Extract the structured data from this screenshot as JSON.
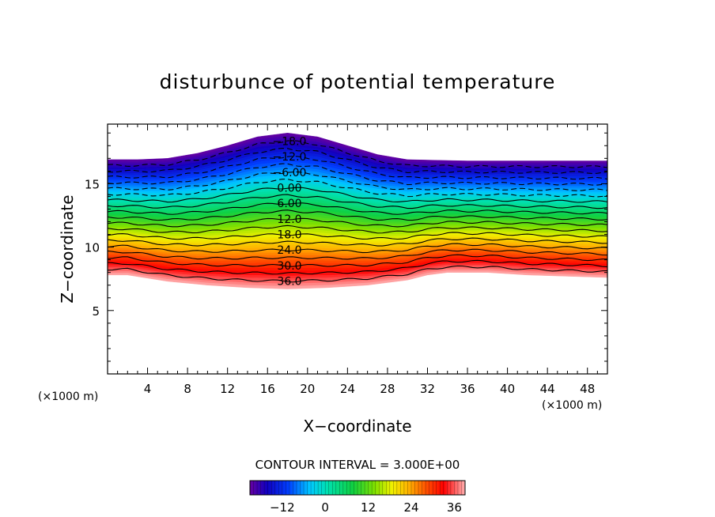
{
  "chart_data": {
    "type": "contour",
    "title": "disturbunce of potential temperature",
    "xlabel": "X−coordinate",
    "ylabel": "Z−coordinate",
    "x_unit_label": "(×1000 m)",
    "x_unit_label_right": "(×1000 m)",
    "xlim": [
      0,
      50
    ],
    "ylim": [
      0,
      19.7
    ],
    "x_ticks": [
      4,
      8,
      12,
      16,
      20,
      24,
      28,
      32,
      36,
      40,
      44,
      48
    ],
    "y_ticks": [
      5,
      10,
      15
    ],
    "contour_interval_text": "CONTOUR INTERVAL = 3.000E+00",
    "contour_interval": 3,
    "value_range": [
      -21,
      39
    ],
    "negative_contours_dashed": true,
    "colorbar": {
      "ticks": [
        -12,
        0,
        12,
        24,
        36
      ],
      "tick_labels": [
        "−12",
        "0",
        "12",
        "24",
        "36"
      ],
      "min": -21,
      "max": 39
    },
    "field_top": {
      "x": [
        0,
        3,
        6,
        9,
        12,
        15,
        18,
        21,
        24,
        27,
        30,
        33,
        36,
        40,
        44,
        50
      ],
      "z": [
        16.9,
        16.9,
        17.0,
        17.4,
        18.0,
        18.7,
        19.0,
        18.7,
        18.0,
        17.3,
        16.9,
        16.85,
        16.8,
        16.8,
        16.8,
        16.8
      ]
    },
    "field_bottom": {
      "x": [
        0,
        2,
        6,
        10,
        14,
        18,
        22,
        26,
        30,
        32,
        34,
        38,
        42,
        46,
        50
      ],
      "z": [
        7.8,
        7.8,
        7.3,
        7.0,
        6.8,
        6.7,
        6.8,
        7.0,
        7.4,
        7.8,
        8.0,
        8.0,
        7.8,
        7.7,
        7.6
      ]
    },
    "contour_labels": [
      "−18.0",
      "−12.0",
      "−6.00",
      "0.00",
      "6.00",
      "12.0",
      "18.0",
      "24.0",
      "30.0",
      "36.0"
    ]
  }
}
